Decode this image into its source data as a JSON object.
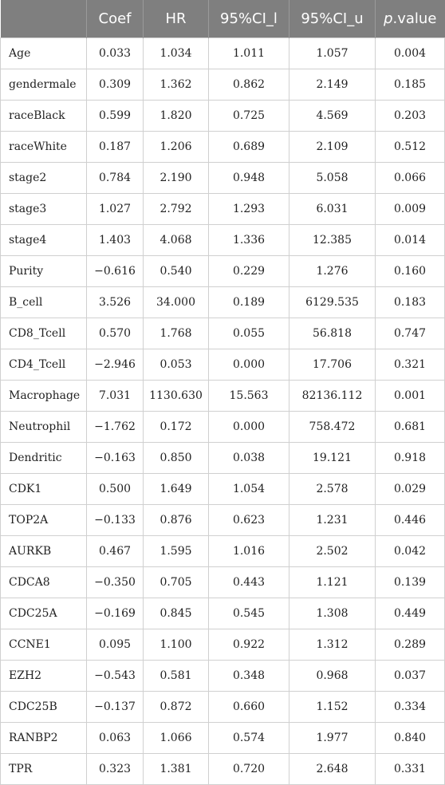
{
  "table": {
    "headers": [
      "",
      "Coef",
      "HR",
      "95%CI_l",
      "95%CI_u",
      "value"
    ],
    "header_p_prefix": "p",
    "rows": [
      [
        "Age",
        "0.033",
        "1.034",
        "1.011",
        "1.057",
        "0.004"
      ],
      [
        "gendermale",
        "0.309",
        "1.362",
        "0.862",
        "2.149",
        "0.185"
      ],
      [
        "raceBlack",
        "0.599",
        "1.820",
        "0.725",
        "4.569",
        "0.203"
      ],
      [
        "raceWhite",
        "0.187",
        "1.206",
        "0.689",
        "2.109",
        "0.512"
      ],
      [
        "stage2",
        "0.784",
        "2.190",
        "0.948",
        "5.058",
        "0.066"
      ],
      [
        "stage3",
        "1.027",
        "2.792",
        "1.293",
        "6.031",
        "0.009"
      ],
      [
        "stage4",
        "1.403",
        "4.068",
        "1.336",
        "12.385",
        "0.014"
      ],
      [
        "Purity",
        "−0.616",
        "0.540",
        "0.229",
        "1.276",
        "0.160"
      ],
      [
        "B_cell",
        "3.526",
        "34.000",
        "0.189",
        "6129.535",
        "0.183"
      ],
      [
        "CD8_Tcell",
        "0.570",
        "1.768",
        "0.055",
        "56.818",
        "0.747"
      ],
      [
        "CD4_Tcell",
        "−2.946",
        "0.053",
        "0.000",
        "17.706",
        "0.321"
      ],
      [
        "Macrophage",
        "7.031",
        "1130.630",
        "15.563",
        "82136.112",
        "0.001"
      ],
      [
        "Neutrophil",
        "−1.762",
        "0.172",
        "0.000",
        "758.472",
        "0.681"
      ],
      [
        "Dendritic",
        "−0.163",
        "0.850",
        "0.038",
        "19.121",
        "0.918"
      ],
      [
        "CDK1",
        "0.500",
        "1.649",
        "1.054",
        "2.578",
        "0.029"
      ],
      [
        "TOP2A",
        "−0.133",
        "0.876",
        "0.623",
        "1.231",
        "0.446"
      ],
      [
        "AURKB",
        "0.467",
        "1.595",
        "1.016",
        "2.502",
        "0.042"
      ],
      [
        "CDCA8",
        "−0.350",
        "0.705",
        "0.443",
        "1.121",
        "0.139"
      ],
      [
        "CDC25A",
        "−0.169",
        "0.845",
        "0.545",
        "1.308",
        "0.449"
      ],
      [
        "CCNE1",
        "0.095",
        "1.100",
        "0.922",
        "1.312",
        "0.289"
      ],
      [
        "EZH2",
        "−0.543",
        "0.581",
        "0.348",
        "0.968",
        "0.037"
      ],
      [
        "CDC25B",
        "−0.137",
        "0.872",
        "0.660",
        "1.152",
        "0.334"
      ],
      [
        "RANBP2",
        "0.063",
        "1.066",
        "0.574",
        "1.977",
        "0.840"
      ],
      [
        "TPR",
        "0.323",
        "1.381",
        "0.720",
        "2.648",
        "0.331"
      ]
    ]
  },
  "colors": {
    "header_bg": "#7f7f7f",
    "header_text": "#ffffff",
    "grid": "#d0d0d0",
    "body_text": "#222222"
  }
}
